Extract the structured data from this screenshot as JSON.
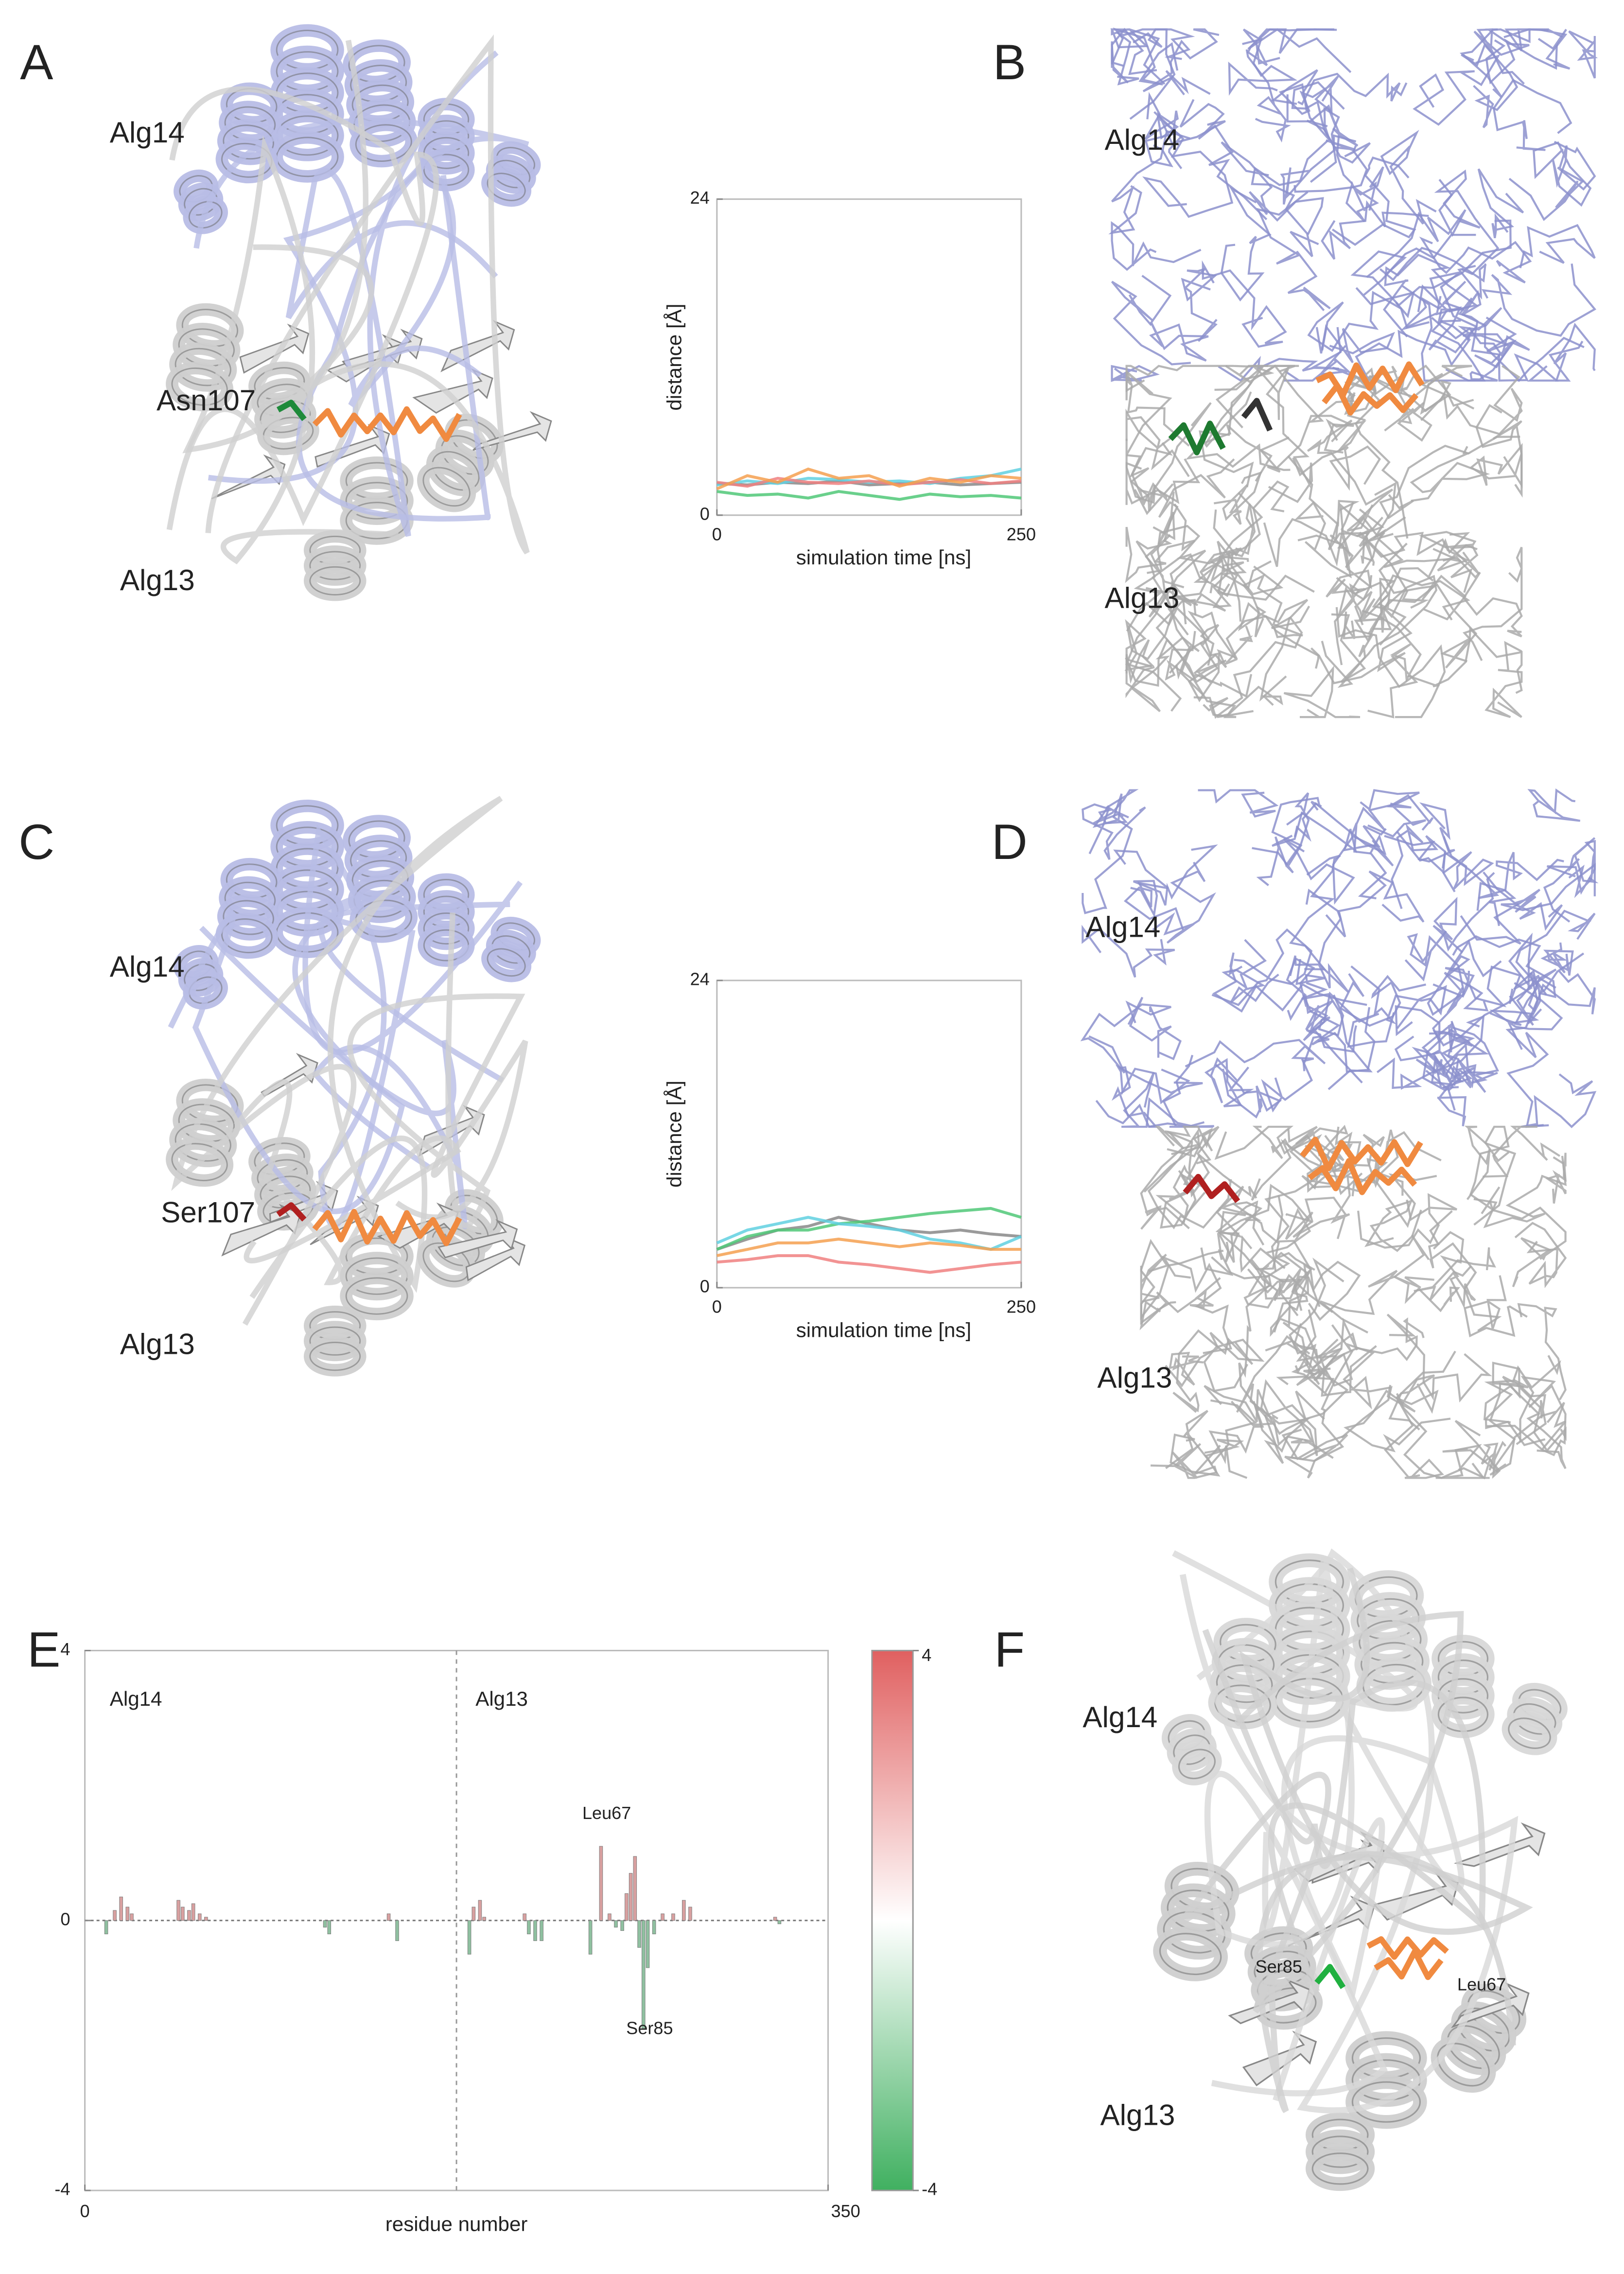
{
  "panels": [
    {
      "label": "A",
      "texts": [
        "Alg14",
        "Asn107",
        "Alg13"
      ]
    },
    {
      "label": "B",
      "texts": [
        "Alg14",
        "Alg13"
      ]
    },
    {
      "label": "C",
      "texts": [
        "Alg14",
        "Ser107",
        "Alg13"
      ]
    },
    {
      "label": "D",
      "texts": [
        "Alg14",
        "Alg13"
      ]
    },
    {
      "label": "E",
      "texts": []
    },
    {
      "label": "F",
      "texts": [
        "Alg14",
        "Alg13",
        "Ser85",
        "Leu67"
      ]
    }
  ],
  "chart_data": [
    {
      "type": "line",
      "xlabel": "simulation time [ns]",
      "ylabel": "distance [Å]",
      "x": [
        0,
        25,
        50,
        75,
        100,
        125,
        150,
        175,
        200,
        225,
        250
      ],
      "xlim": [
        0,
        250
      ],
      "xticks": [
        0,
        250
      ],
      "ylim": [
        0,
        24
      ],
      "yticks": [
        0,
        24
      ],
      "series": [
        {
          "color": "#888888",
          "values": [
            2.4,
            2.3,
            2.5,
            2.4,
            2.6,
            2.3,
            2.4,
            2.5,
            2.3,
            2.4,
            2.5
          ]
        },
        {
          "color": "#50c878",
          "values": [
            1.8,
            1.5,
            1.6,
            1.3,
            1.8,
            1.5,
            1.2,
            1.6,
            1.4,
            1.5,
            1.3
          ]
        },
        {
          "color": "#60d0e0",
          "values": [
            2.3,
            2.6,
            2.4,
            2.8,
            2.7,
            2.5,
            2.6,
            2.4,
            2.8,
            3,
            3.5
          ]
        },
        {
          "color": "#f08080",
          "values": [
            2.5,
            2.2,
            2.8,
            2.5,
            2.4,
            2.6,
            2.3,
            2.5,
            2.7,
            2.4,
            2.6
          ]
        },
        {
          "color": "#f5a050",
          "values": [
            2,
            3,
            2.5,
            3.5,
            2.8,
            3,
            2.2,
            2.8,
            2.5,
            3,
            2.8
          ]
        }
      ]
    },
    {
      "type": "line",
      "xlabel": "simulation time [ns]",
      "ylabel": "distance [Å]",
      "x": [
        0,
        25,
        50,
        75,
        100,
        125,
        150,
        175,
        200,
        225,
        250
      ],
      "xlim": [
        0,
        250
      ],
      "xticks": [
        0,
        250
      ],
      "ylim": [
        0,
        24
      ],
      "yticks": [
        0,
        24
      ],
      "series": [
        {
          "color": "#888888",
          "values": [
            3,
            3.8,
            4.5,
            4.8,
            5.5,
            5,
            4.5,
            4.3,
            4.5,
            4.2,
            4
          ]
        },
        {
          "color": "#50c878",
          "values": [
            3,
            4,
            4.5,
            4.5,
            5,
            5.2,
            5.5,
            5.8,
            6,
            6.2,
            5.5
          ]
        },
        {
          "color": "#60d0e0",
          "values": [
            3.5,
            4.5,
            5,
            5.5,
            5,
            4.8,
            4.5,
            3.8,
            3.5,
            3,
            4
          ]
        },
        {
          "color": "#f5a050",
          "values": [
            2.5,
            3,
            3.5,
            3.5,
            3.8,
            3.5,
            3.2,
            3.5,
            3.3,
            3,
            3
          ]
        },
        {
          "color": "#f08080",
          "values": [
            2,
            2.2,
            2.5,
            2.5,
            2,
            1.8,
            1.5,
            1.2,
            1.5,
            1.8,
            2
          ]
        }
      ]
    },
    {
      "type": "bar",
      "xlabel": "residue number",
      "x": [
        10,
        14,
        17,
        20,
        22,
        44,
        46,
        49,
        51,
        54,
        57,
        113,
        115,
        143,
        147,
        181,
        183,
        186,
        188,
        207,
        209,
        212,
        215,
        238,
        243,
        247,
        250,
        253,
        255,
        257,
        259,
        261,
        263,
        265,
        268,
        272,
        277,
        282,
        285,
        325,
        327
      ],
      "values": [
        -0.2,
        0.15,
        0.35,
        0.2,
        0.1,
        0.3,
        0.2,
        0.15,
        0.25,
        0.1,
        0.05,
        -0.1,
        -0.2,
        0.1,
        -0.3,
        -0.5,
        0.2,
        0.3,
        0.05,
        0.1,
        -0.2,
        -0.3,
        -0.3,
        -0.5,
        1.1,
        0.1,
        -0.1,
        -0.15,
        0.4,
        0.7,
        0.95,
        -0.4,
        -1.6,
        -0.7,
        -0.2,
        0.1,
        0.1,
        0.3,
        0.2,
        0.05,
        -0.05
      ],
      "xlim": [
        0,
        350
      ],
      "xticks": [
        0,
        350
      ],
      "ylim": [
        -4,
        4
      ],
      "yticks": [
        4,
        0,
        -4
      ],
      "divider": 175,
      "annotations": [
        "Alg14",
        "Alg13",
        "Leu67",
        "Ser85"
      ],
      "colors": {
        "positive": "#d8a0a0",
        "negative": "#8fc0a0"
      },
      "colorbar": {
        "clim": [
          -4,
          4
        ],
        "ticks": [
          4,
          -4
        ],
        "colors": [
          "#40b060",
          "#ffffff",
          "#e06060"
        ]
      }
    }
  ]
}
